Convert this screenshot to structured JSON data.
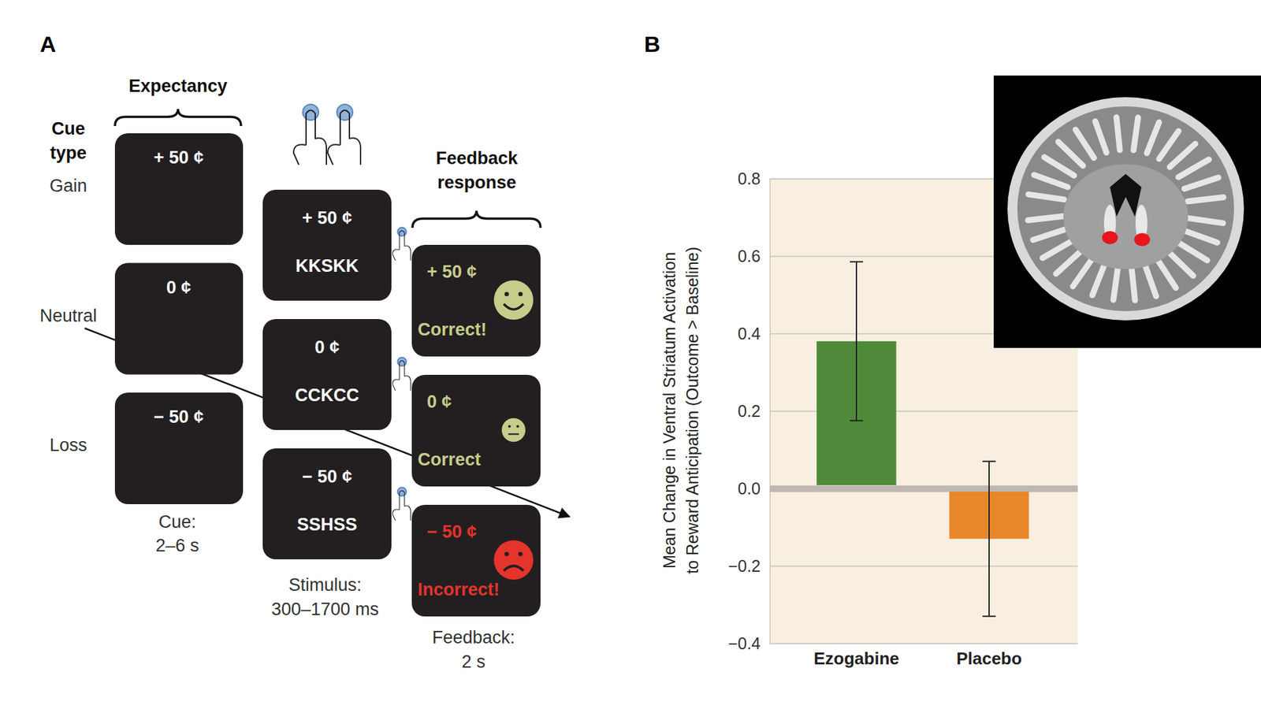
{
  "panel_labels": [
    "A",
    "B"
  ],
  "diagram": {
    "expectancy_label": "Expectancy",
    "cue_type_label": [
      "Cue",
      "type"
    ],
    "feedback_label": [
      "Feedback",
      "response"
    ],
    "rows": [
      {
        "cue_type": "Gain",
        "cue": "+ 50 ¢",
        "stimulus_amount": "+ 50 ¢",
        "stimulus": "KKSKK",
        "feedback_amount": "+ 50 ¢",
        "feedback": "Correct!"
      },
      {
        "cue_type": "Neutral",
        "cue": "0 ¢",
        "stimulus_amount": "0 ¢",
        "stimulus": "CCKCC",
        "feedback_amount": "0 ¢",
        "feedback": "Correct"
      },
      {
        "cue_type": "Loss",
        "cue": "− 50 ¢",
        "stimulus_amount": "− 50 ¢",
        "stimulus": "SSHSS",
        "feedback_amount": "− 50 ¢",
        "feedback": "Incorrect!"
      }
    ],
    "timings": [
      [
        "Cue:",
        "2–6 s"
      ],
      [
        "Stimulus:",
        "300–1700 ms"
      ],
      [
        "Feedback:",
        "2 s"
      ]
    ]
  },
  "chart_data": {
    "type": "bar",
    "y_label": [
      "Mean Change in Ventral Striatum Activation",
      "to Reward Anticipation (Outcome > Baseline)"
    ],
    "categories": [
      "Ezogabine",
      "Placebo"
    ],
    "values": [
      0.38,
      -0.13
    ],
    "errors": [
      0.205,
      0.2
    ],
    "colors": [
      "#4e8a3a",
      "#e8862a"
    ],
    "ylim": [
      -0.4,
      0.8
    ],
    "yticks": [
      {
        "value": -0.4,
        "label": "−0.4"
      },
      {
        "value": -0.2,
        "label": "−0.2"
      },
      {
        "value": 0,
        "label": "0.0"
      },
      0.2,
      0.4,
      0.6,
      0.8
    ],
    "grid": true
  }
}
